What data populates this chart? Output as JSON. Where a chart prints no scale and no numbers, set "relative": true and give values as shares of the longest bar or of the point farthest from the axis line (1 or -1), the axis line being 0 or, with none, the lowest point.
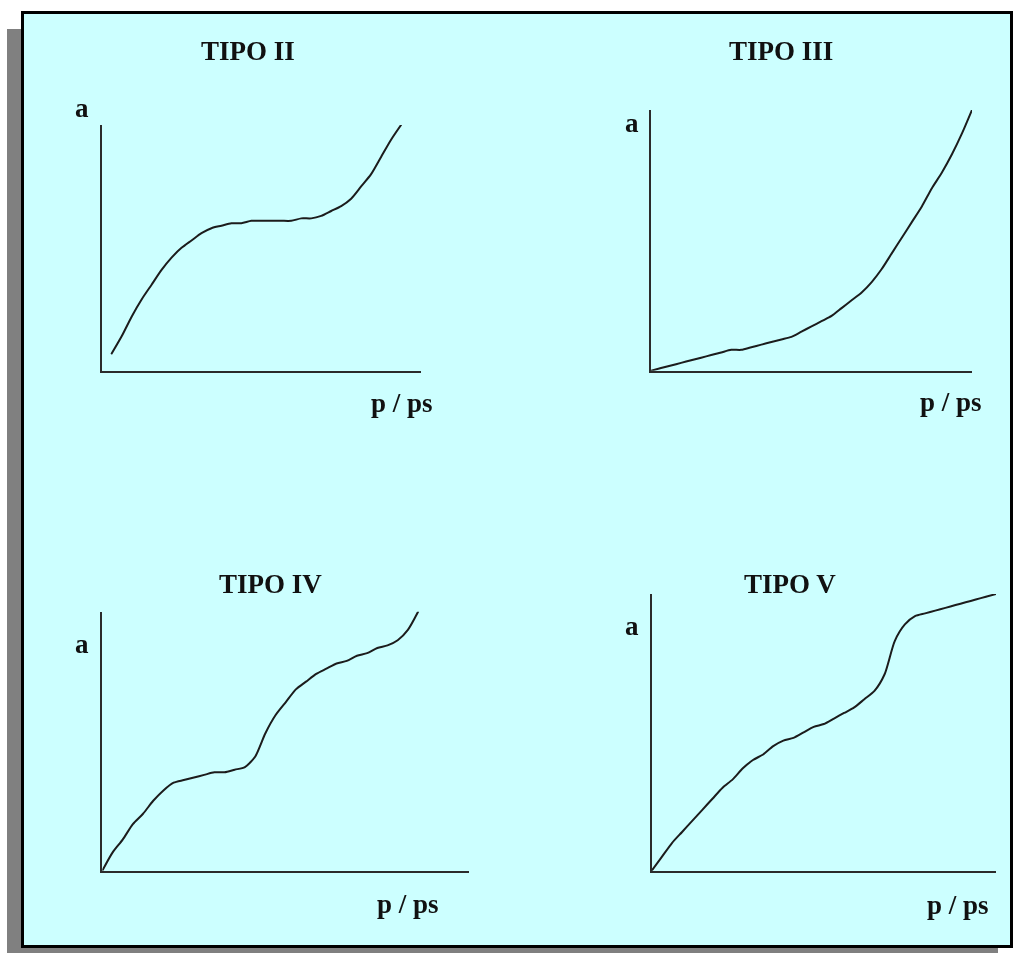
{
  "chart_data": [
    {
      "type": "line",
      "title": "TIPO II",
      "xlabel": "p / ps",
      "ylabel": "a",
      "relative": true,
      "categories": [
        null,
        null,
        null,
        null,
        null,
        null,
        null,
        null,
        null,
        null,
        null,
        null,
        null,
        null,
        null,
        null,
        null,
        null,
        null,
        null,
        null,
        null,
        null,
        null,
        null,
        null,
        null,
        null,
        null,
        null,
        null,
        null,
        null
      ],
      "series": [
        {
          "color": "#1c1c1c",
          "values": [
            null,
            0.07,
            0.14,
            0.22,
            0.29,
            0.35,
            0.41,
            0.46,
            0.5,
            0.53,
            0.56,
            0.58,
            0.59,
            0.6,
            0.6,
            0.61,
            0.61,
            0.61,
            0.61,
            0.61,
            0.62,
            0.62,
            0.63,
            0.65,
            0.67,
            0.7,
            0.75,
            0.8,
            0.87,
            0.94,
            1,
            null,
            null
          ]
        }
      ]
    },
    {
      "type": "line",
      "title": "TIPO III",
      "xlabel": "p / ps",
      "ylabel": "a",
      "relative": true,
      "categories": [
        null,
        null,
        null,
        null,
        null,
        null,
        null,
        null,
        null,
        null,
        null,
        null,
        null,
        null,
        null,
        null,
        null,
        null,
        null,
        null,
        null,
        null,
        null,
        null,
        null,
        null,
        null,
        null,
        null,
        null,
        null,
        null,
        null
      ],
      "series": [
        {
          "color": "#1c1c1c",
          "values": [
            0,
            0.01,
            0.02,
            0.03,
            0.04,
            0.05,
            0.06,
            0.07,
            0.08,
            0.08,
            0.09,
            0.1,
            0.11,
            0.12,
            0.13,
            0.15,
            0.17,
            0.19,
            0.21,
            0.24,
            0.27,
            0.3,
            0.34,
            0.39,
            0.45,
            0.51,
            0.57,
            0.63,
            0.7,
            0.76,
            0.83,
            0.91,
            1
          ]
        }
      ]
    },
    {
      "type": "line",
      "title": "TIPO IV",
      "xlabel": "p / ps",
      "ylabel": "a",
      "relative": true,
      "categories": [
        null,
        null,
        null,
        null,
        null,
        null,
        null,
        null,
        null,
        null,
        null,
        null,
        null,
        null,
        null,
        null,
        null,
        null,
        null,
        null,
        null,
        null,
        null,
        null,
        null,
        null,
        null,
        null,
        null,
        null,
        null,
        null,
        null,
        null,
        null,
        null,
        null
      ],
      "series": [
        {
          "color": "#1c1c1c",
          "values": [
            0,
            0.07,
            0.12,
            0.18,
            0.22,
            0.27,
            0.31,
            0.34,
            0.35,
            0.36,
            0.37,
            0.38,
            0.38,
            0.39,
            0.4,
            0.44,
            0.53,
            0.6,
            0.65,
            0.7,
            0.73,
            0.76,
            0.78,
            0.8,
            0.81,
            0.83,
            0.84,
            0.86,
            0.87,
            0.89,
            0.93,
            1,
            null,
            null,
            null,
            null,
            null
          ]
        }
      ]
    },
    {
      "type": "line",
      "title": "TIPO V",
      "xlabel": "p / ps",
      "ylabel": "a",
      "relative": true,
      "categories": [
        null,
        null,
        null,
        null,
        null,
        null,
        null,
        null,
        null,
        null,
        null,
        null,
        null,
        null,
        null,
        null,
        null,
        null,
        null,
        null,
        null,
        null,
        null,
        null,
        null,
        null,
        null,
        null,
        null,
        null,
        null,
        null,
        null,
        null,
        null
      ],
      "series": [
        {
          "color": "#1c1c1c",
          "values": [
            0,
            0.05,
            0.1,
            0.14,
            0.18,
            0.22,
            0.26,
            0.3,
            0.33,
            0.37,
            0.4,
            0.42,
            0.45,
            0.47,
            0.48,
            0.5,
            0.52,
            0.53,
            0.55,
            0.57,
            0.59,
            0.62,
            0.65,
            0.71,
            0.83,
            0.89,
            0.92,
            0.93,
            0.94,
            0.95,
            0.96,
            0.97,
            0.98,
            0.99,
            1
          ]
        }
      ]
    }
  ]
}
